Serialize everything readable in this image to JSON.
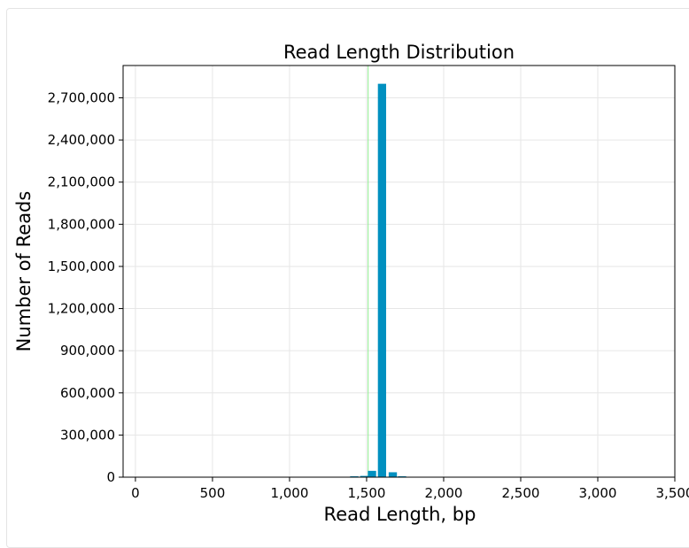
{
  "chart_data": {
    "type": "bar",
    "title": "Read Length Distribution",
    "xlabel": "Read Length, bp",
    "ylabel": "Number of Reads",
    "xlim": [
      -80,
      3500
    ],
    "ylim": [
      0,
      2930000
    ],
    "xticks": [
      0,
      500,
      1000,
      1500,
      2000,
      2500,
      3000,
      3500
    ],
    "xtick_labels": [
      "0",
      "500",
      "1,000",
      "1,500",
      "2,000",
      "2,500",
      "3,000",
      "3,500"
    ],
    "yticks": [
      0,
      300000,
      600000,
      900000,
      1200000,
      1500000,
      1800000,
      2100000,
      2400000,
      2700000
    ],
    "ytick_labels": [
      "0",
      "300,000",
      "600,000",
      "900,000",
      "1,200,000",
      "1,500,000",
      "1,800,000",
      "2,100,000",
      "2,400,000",
      "2,700,000"
    ],
    "grid": true,
    "bar_color": "#0090c0",
    "bin_width": 65,
    "bins": [
      {
        "x": 1420,
        "value": 4000
      },
      {
        "x": 1485,
        "value": 9000
      },
      {
        "x": 1535,
        "value": 45000
      },
      {
        "x": 1600,
        "value": 2800000
      },
      {
        "x": 1670,
        "value": 35000
      },
      {
        "x": 1730,
        "value": 3000
      }
    ],
    "reference_line": {
      "x": 1510,
      "color": "#90ee90"
    }
  }
}
